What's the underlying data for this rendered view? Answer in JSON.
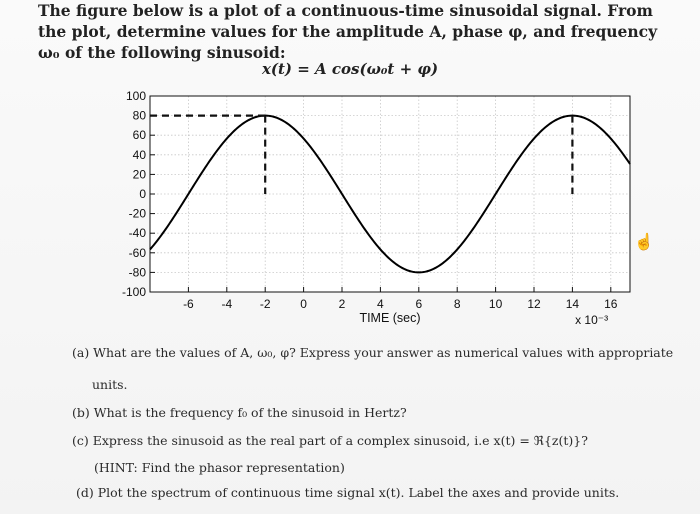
{
  "problem": {
    "intro": "The figure below is a plot of a continuous-time sinusoidal signal. From the plot, determine values for the amplitude A, phase φ, and frequency ω₀ of the following sinusoid:",
    "equation": "x(t) = A cos(ω₀t + φ)"
  },
  "questions": {
    "a": "(a) What are the values of A, ω₀, φ? Express your answer as numerical values with appropriate",
    "a_cont": "units.",
    "b": "(b) What is the frequency f₀ of the sinusoid in Hertz?",
    "c": "(c) Express the sinusoid as the real part of a complex sinusoid, i.e x(t) = ℜ{z(t)}?",
    "c_hint": "(HINT: Find the phasor representation)",
    "d": "(d) Plot the spectrum of continuous time signal x(t). Label the axes and provide units."
  },
  "icons": {
    "cursor": "hand-pointer-icon"
  },
  "chart_data": {
    "type": "line",
    "xlabel": "TIME (sec)",
    "x_multiplier": "x 10⁻³",
    "xlim": [
      -8,
      17
    ],
    "ylim": [
      -100,
      100
    ],
    "xticks": [
      -6,
      -4,
      -2,
      0,
      2,
      4,
      6,
      8,
      10,
      12,
      14,
      16
    ],
    "yticks": [
      100,
      80,
      60,
      40,
      20,
      0,
      -20,
      -40,
      -60,
      -80,
      -100
    ],
    "grid": true,
    "series": [
      {
        "amplitude": 80,
        "peak_times": [
          -2,
          14
        ],
        "trough_time": 6,
        "color": "#000000"
      }
    ],
    "annotations": [
      {
        "kind": "dashed-horizontal",
        "y": 80,
        "x_from": -8,
        "x_to": -2
      },
      {
        "kind": "dashed-vertical",
        "x": -2,
        "y_from": 80,
        "y_to": 0
      },
      {
        "kind": "dashed-vertical",
        "x": 14,
        "y_from": 80,
        "y_to": 0
      }
    ]
  }
}
